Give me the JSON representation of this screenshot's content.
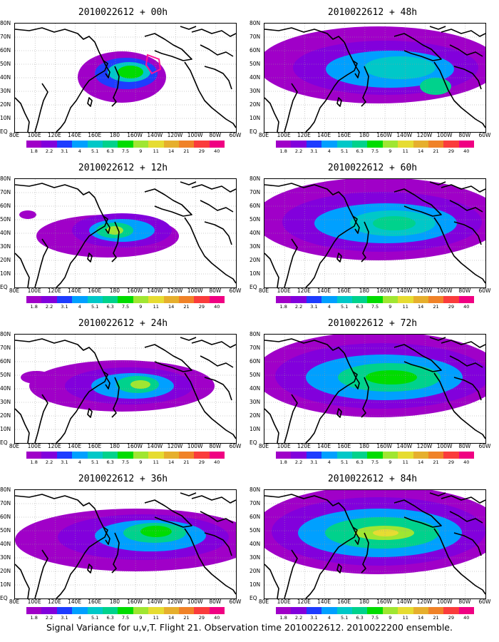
{
  "caption": "Signal Variance for u,v,T. Flight 21. Observation time 2010022612. 2010022200 ensemble.",
  "lat_labels": [
    "80N",
    "70N",
    "60N",
    "50N",
    "40N",
    "30N",
    "20N",
    "10N",
    "EQ"
  ],
  "lon_labels": [
    "80E",
    "100E",
    "120E",
    "140E",
    "160E",
    "180",
    "160W",
    "140W",
    "120W",
    "100W",
    "80W",
    "60W"
  ],
  "colorbar": {
    "levels": [
      "1.8",
      "2.2",
      "3.1",
      "4",
      "5.1",
      "6.3",
      "7.5",
      "9",
      "11",
      "14",
      "21",
      "29",
      "40"
    ],
    "colors": [
      "#a000c8",
      "#8200dc",
      "#1e3cff",
      "#00a0ff",
      "#00c8c8",
      "#00d28c",
      "#00dc00",
      "#a0e632",
      "#e6dc32",
      "#e6af2d",
      "#f08228",
      "#fa3c3c",
      "#f00082"
    ]
  },
  "panels": [
    {
      "title": "2010022612 + 00h",
      "hour": 0
    },
    {
      "title": "2010022612 + 48h",
      "hour": 48
    },
    {
      "title": "2010022612 + 12h",
      "hour": 12
    },
    {
      "title": "2010022612 + 60h",
      "hour": 60
    },
    {
      "title": "2010022612 + 24h",
      "hour": 24
    },
    {
      "title": "2010022612 + 72h",
      "hour": 72
    },
    {
      "title": "2010022612 + 36h",
      "hour": 36
    },
    {
      "title": "2010022612 + 84h",
      "hour": 84
    }
  ],
  "flight_track": {
    "color": "#ff1493",
    "shown_in_panel": 0
  }
}
